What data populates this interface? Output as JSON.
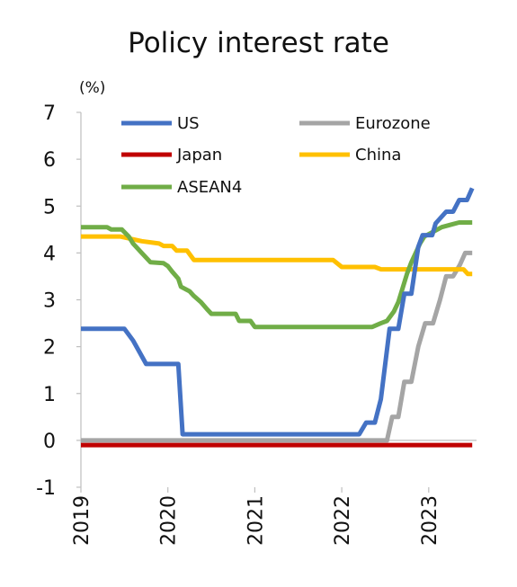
{
  "chart_data": {
    "type": "line",
    "title": "Policy interest rate",
    "ylabel": "(%)",
    "xlabel": "",
    "ylim": [
      -1,
      7
    ],
    "xlim": [
      2019.0,
      2023.55
    ],
    "y_ticks": [
      "-1",
      "0",
      "1",
      "2",
      "3",
      "4",
      "5",
      "6",
      "7"
    ],
    "x_ticks": [
      "2019",
      "2020",
      "2021",
      "2022",
      "2023"
    ],
    "legend_position": "top",
    "grid": false,
    "series": [
      {
        "name": "US",
        "color": "#4472c4",
        "points": [
          [
            2019.0,
            2.38
          ],
          [
            2019.5,
            2.38
          ],
          [
            2019.6,
            2.13
          ],
          [
            2019.75,
            1.63
          ],
          [
            2020.12,
            1.63
          ],
          [
            2020.17,
            0.13
          ],
          [
            2022.2,
            0.13
          ],
          [
            2022.28,
            0.38
          ],
          [
            2022.38,
            0.38
          ],
          [
            2022.45,
            0.88
          ],
          [
            2022.55,
            2.38
          ],
          [
            2022.65,
            2.38
          ],
          [
            2022.72,
            3.13
          ],
          [
            2022.8,
            3.13
          ],
          [
            2022.88,
            4.13
          ],
          [
            2022.93,
            4.38
          ],
          [
            2023.04,
            4.38
          ],
          [
            2023.08,
            4.63
          ],
          [
            2023.2,
            4.88
          ],
          [
            2023.28,
            4.88
          ],
          [
            2023.35,
            5.13
          ],
          [
            2023.44,
            5.13
          ],
          [
            2023.5,
            5.38
          ]
        ]
      },
      {
        "name": "Eurozone",
        "color": "#a5a5a5",
        "points": [
          [
            2019.0,
            0.0
          ],
          [
            2022.52,
            0.0
          ],
          [
            2022.58,
            0.5
          ],
          [
            2022.65,
            0.5
          ],
          [
            2022.72,
            1.25
          ],
          [
            2022.8,
            1.25
          ],
          [
            2022.88,
            2.0
          ],
          [
            2022.96,
            2.5
          ],
          [
            2023.05,
            2.5
          ],
          [
            2023.13,
            3.0
          ],
          [
            2023.2,
            3.5
          ],
          [
            2023.28,
            3.5
          ],
          [
            2023.36,
            3.75
          ],
          [
            2023.42,
            4.0
          ],
          [
            2023.5,
            4.0
          ]
        ]
      },
      {
        "name": "Japan",
        "color": "#c00000",
        "points": [
          [
            2019.0,
            -0.1
          ],
          [
            2023.5,
            -0.1
          ]
        ]
      },
      {
        "name": "China",
        "color": "#ffc000",
        "points": [
          [
            2019.0,
            4.35
          ],
          [
            2019.45,
            4.35
          ],
          [
            2019.7,
            4.25
          ],
          [
            2019.9,
            4.2
          ],
          [
            2019.95,
            4.15
          ],
          [
            2020.05,
            4.15
          ],
          [
            2020.1,
            4.05
          ],
          [
            2020.22,
            4.05
          ],
          [
            2020.3,
            3.85
          ],
          [
            2021.9,
            3.85
          ],
          [
            2022.0,
            3.7
          ],
          [
            2022.38,
            3.7
          ],
          [
            2022.45,
            3.65
          ],
          [
            2023.4,
            3.65
          ],
          [
            2023.45,
            3.55
          ],
          [
            2023.5,
            3.55
          ]
        ]
      },
      {
        "name": "ASEAN4",
        "color": "#70ad47",
        "points": [
          [
            2019.0,
            4.55
          ],
          [
            2019.3,
            4.55
          ],
          [
            2019.35,
            4.5
          ],
          [
            2019.47,
            4.5
          ],
          [
            2019.55,
            4.35
          ],
          [
            2019.6,
            4.2
          ],
          [
            2019.7,
            4.0
          ],
          [
            2019.8,
            3.8
          ],
          [
            2019.95,
            3.78
          ],
          [
            2020.0,
            3.72
          ],
          [
            2020.05,
            3.6
          ],
          [
            2020.12,
            3.45
          ],
          [
            2020.15,
            3.28
          ],
          [
            2020.25,
            3.18
          ],
          [
            2020.3,
            3.08
          ],
          [
            2020.38,
            2.95
          ],
          [
            2020.45,
            2.8
          ],
          [
            2020.5,
            2.7
          ],
          [
            2020.78,
            2.7
          ],
          [
            2020.82,
            2.55
          ],
          [
            2020.95,
            2.55
          ],
          [
            2021.0,
            2.42
          ],
          [
            2022.35,
            2.42
          ],
          [
            2022.45,
            2.5
          ],
          [
            2022.52,
            2.55
          ],
          [
            2022.6,
            2.75
          ],
          [
            2022.65,
            2.95
          ],
          [
            2022.7,
            3.25
          ],
          [
            2022.75,
            3.55
          ],
          [
            2022.8,
            3.8
          ],
          [
            2022.85,
            4.0
          ],
          [
            2022.9,
            4.2
          ],
          [
            2022.95,
            4.35
          ],
          [
            2023.05,
            4.45
          ],
          [
            2023.15,
            4.55
          ],
          [
            2023.25,
            4.6
          ],
          [
            2023.35,
            4.65
          ],
          [
            2023.5,
            4.65
          ]
        ]
      }
    ]
  }
}
